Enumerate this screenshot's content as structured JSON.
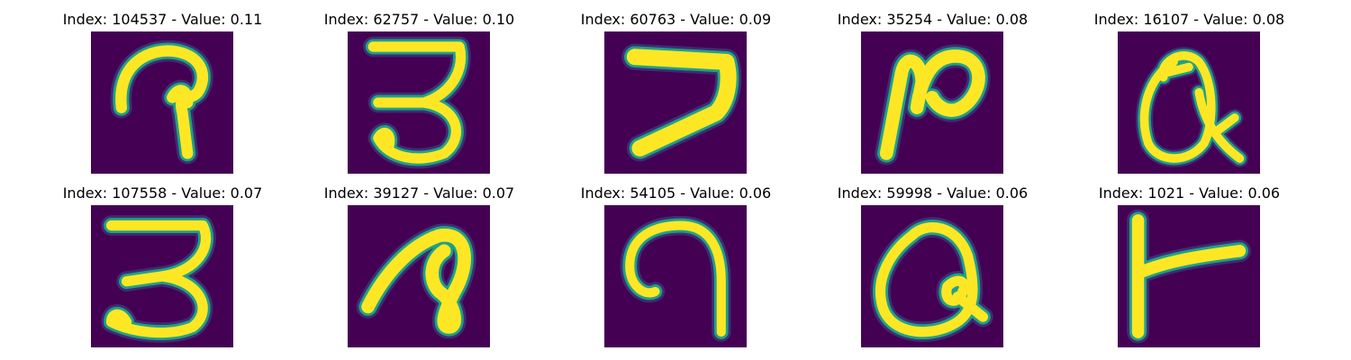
{
  "panels": [
    {
      "title": "Index: 104537 - Value: 0.11",
      "glyph": "glyph-1"
    },
    {
      "title": "Index: 62757 - Value: 0.10",
      "glyph": "glyph-2"
    },
    {
      "title": "Index: 60763 - Value: 0.09",
      "glyph": "glyph-3"
    },
    {
      "title": "Index: 35254 - Value: 0.08",
      "glyph": "glyph-4"
    },
    {
      "title": "Index: 16107 - Value: 0.08",
      "glyph": "glyph-5"
    },
    {
      "title": "Index: 107558 - Value: 0.07",
      "glyph": "glyph-6"
    },
    {
      "title": "Index: 39127 - Value: 0.07",
      "glyph": "glyph-7"
    },
    {
      "title": "Index: 54105 - Value: 0.06",
      "glyph": "glyph-8"
    },
    {
      "title": "Index: 59998 - Value: 0.06",
      "glyph": "glyph-9"
    },
    {
      "title": "Index: 1021 - Value: 0.06",
      "glyph": "glyph-10"
    }
  ],
  "colors": {
    "background": "#440154",
    "stroke_core": "#fde725",
    "stroke_edge": "#1fa187"
  }
}
